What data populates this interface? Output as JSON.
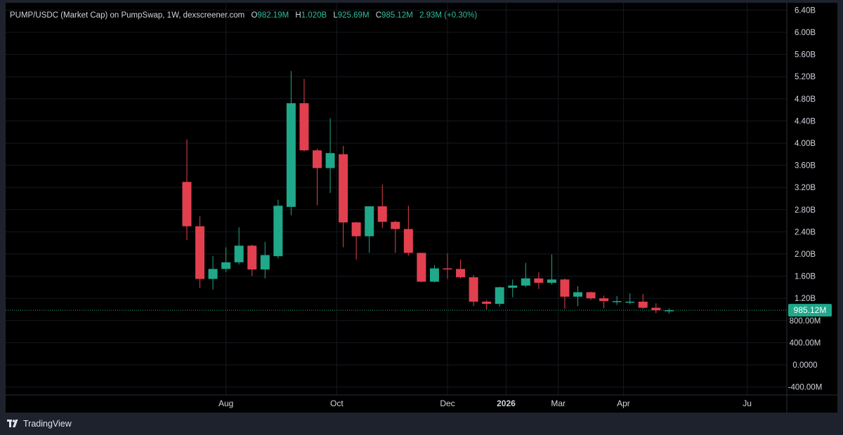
{
  "header": {
    "title": "PUMP/USDC (Market Cap) on PumpSwap, 1W, dexscreener.com",
    "o_label": "O",
    "o_value": "982.19M",
    "h_label": "H",
    "h_value": "1.020B",
    "l_label": "L",
    "l_value": "925.69M",
    "c_label": "C",
    "c_value": "985.12M",
    "change": "2.93M (+0.30%)"
  },
  "price_tag": "985.12M",
  "footer": {
    "brand": "TradingView",
    "logo_icon": "tradingview-logo-icon"
  },
  "colors": {
    "up": "#1fa88a",
    "down": "#e2404f",
    "background": "#000000",
    "frame": "#1e222d",
    "grid": "#151820",
    "text": "#d1d4dc"
  },
  "chart_data": {
    "type": "candlestick",
    "title": "PUMP/USDC (Market Cap) on PumpSwap, 1W, dexscreener.com",
    "unit": "market cap (USD)",
    "y_ticks": [
      {
        "value": 6.4,
        "label": "6.40B"
      },
      {
        "value": 6.0,
        "label": "6.00B"
      },
      {
        "value": 5.6,
        "label": "5.60B"
      },
      {
        "value": 5.2,
        "label": "5.20B"
      },
      {
        "value": 4.8,
        "label": "4.80B"
      },
      {
        "value": 4.4,
        "label": "4.40B"
      },
      {
        "value": 4.0,
        "label": "4.00B"
      },
      {
        "value": 3.6,
        "label": "3.60B"
      },
      {
        "value": 3.2,
        "label": "3.20B"
      },
      {
        "value": 2.8,
        "label": "2.80B"
      },
      {
        "value": 2.4,
        "label": "2.40B"
      },
      {
        "value": 2.0,
        "label": "2.00B"
      },
      {
        "value": 1.6,
        "label": "1.60B"
      },
      {
        "value": 1.2,
        "label": "1.20B"
      },
      {
        "value": 0.8,
        "label": "800.00M"
      },
      {
        "value": 0.4,
        "label": "400.00M"
      },
      {
        "value": 0.0,
        "label": "0.0000"
      },
      {
        "value": -0.4,
        "label": "-400.00M"
      }
    ],
    "y_unit_scale": "billions USD",
    "y_range": [
      -0.55,
      6.5
    ],
    "x_ticks": [
      {
        "index": 3,
        "label": "Aug"
      },
      {
        "index": 11.5,
        "label": "Oct"
      },
      {
        "index": 20,
        "label": "Dec"
      },
      {
        "index": 24.5,
        "label": "2026"
      },
      {
        "index": 28.5,
        "label": "Mar"
      },
      {
        "index": 33.5,
        "label": "Apr"
      },
      {
        "index": 43,
        "label": "Ju"
      }
    ],
    "last_price": 0.985,
    "candles": [
      {
        "o": 3.3,
        "h": 4.07,
        "l": 2.25,
        "c": 2.5
      },
      {
        "o": 2.5,
        "h": 2.68,
        "l": 1.39,
        "c": 1.55
      },
      {
        "o": 1.55,
        "h": 1.96,
        "l": 1.36,
        "c": 1.73
      },
      {
        "o": 1.73,
        "h": 2.12,
        "l": 1.67,
        "c": 1.85
      },
      {
        "o": 1.85,
        "h": 2.48,
        "l": 1.81,
        "c": 2.15
      },
      {
        "o": 2.15,
        "h": 2.17,
        "l": 1.6,
        "c": 1.72
      },
      {
        "o": 1.72,
        "h": 2.22,
        "l": 1.56,
        "c": 1.98
      },
      {
        "o": 1.96,
        "h": 2.98,
        "l": 1.92,
        "c": 2.87
      },
      {
        "o": 2.85,
        "h": 5.3,
        "l": 2.7,
        "c": 4.72
      },
      {
        "o": 4.72,
        "h": 5.16,
        "l": 3.85,
        "c": 3.87
      },
      {
        "o": 3.87,
        "h": 3.9,
        "l": 2.88,
        "c": 3.55
      },
      {
        "o": 3.55,
        "h": 4.45,
        "l": 3.1,
        "c": 3.82
      },
      {
        "o": 3.8,
        "h": 3.95,
        "l": 2.12,
        "c": 2.57
      },
      {
        "o": 2.57,
        "h": 2.58,
        "l": 1.9,
        "c": 2.32
      },
      {
        "o": 2.32,
        "h": 2.86,
        "l": 2.02,
        "c": 2.86
      },
      {
        "o": 2.86,
        "h": 3.25,
        "l": 2.47,
        "c": 2.58
      },
      {
        "o": 2.58,
        "h": 2.6,
        "l": 2.02,
        "c": 2.45
      },
      {
        "o": 2.45,
        "h": 2.87,
        "l": 1.97,
        "c": 2.02
      },
      {
        "o": 2.02,
        "h": 2.02,
        "l": 1.49,
        "c": 1.5
      },
      {
        "o": 1.5,
        "h": 1.8,
        "l": 1.49,
        "c": 1.74
      },
      {
        "o": 1.74,
        "h": 2.01,
        "l": 1.55,
        "c": 1.73
      },
      {
        "o": 1.73,
        "h": 1.9,
        "l": 1.56,
        "c": 1.58
      },
      {
        "o": 1.58,
        "h": 1.62,
        "l": 1.06,
        "c": 1.14
      },
      {
        "o": 1.14,
        "h": 1.17,
        "l": 1.0,
        "c": 1.1
      },
      {
        "o": 1.1,
        "h": 1.41,
        "l": 1.05,
        "c": 1.4
      },
      {
        "o": 1.39,
        "h": 1.54,
        "l": 1.22,
        "c": 1.43
      },
      {
        "o": 1.43,
        "h": 1.84,
        "l": 1.4,
        "c": 1.56
      },
      {
        "o": 1.56,
        "h": 1.67,
        "l": 1.37,
        "c": 1.48
      },
      {
        "o": 1.48,
        "h": 1.99,
        "l": 1.45,
        "c": 1.54
      },
      {
        "o": 1.54,
        "h": 1.56,
        "l": 1.01,
        "c": 1.23
      },
      {
        "o": 1.23,
        "h": 1.42,
        "l": 1.06,
        "c": 1.31
      },
      {
        "o": 1.31,
        "h": 1.32,
        "l": 1.17,
        "c": 1.2
      },
      {
        "o": 1.2,
        "h": 1.25,
        "l": 1.02,
        "c": 1.15
      },
      {
        "o": 1.14,
        "h": 1.24,
        "l": 1.08,
        "c": 1.15
      },
      {
        "o": 1.14,
        "h": 1.29,
        "l": 1.09,
        "c": 1.14
      },
      {
        "o": 1.14,
        "h": 1.28,
        "l": 1.01,
        "c": 1.03
      },
      {
        "o": 1.03,
        "h": 1.11,
        "l": 0.93,
        "c": 0.985
      },
      {
        "o": 0.982,
        "h": 1.02,
        "l": 0.926,
        "c": 0.985
      }
    ]
  }
}
